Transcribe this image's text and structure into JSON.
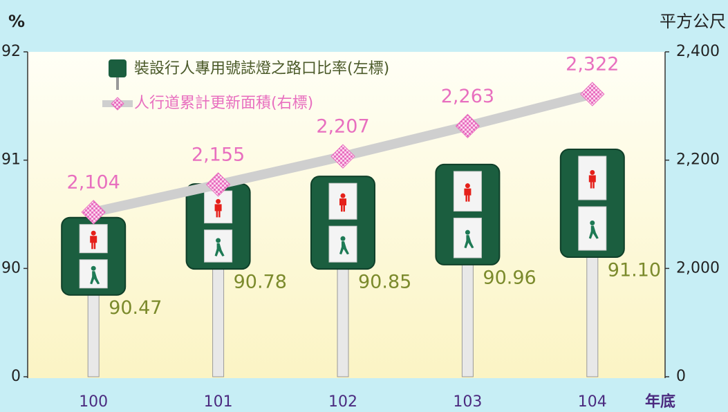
{
  "chart_data": {
    "type": "bar",
    "x_unit": "年底",
    "y_unit": "%",
    "y2_unit": "平方公尺",
    "categories": [
      "100",
      "101",
      "102",
      "103",
      "104"
    ],
    "series": [
      {
        "name": "裝設行人專用號誌燈之路口比率(左標)",
        "color": "#1b5e3f",
        "type": "bar",
        "values": [
          90.47,
          90.78,
          90.85,
          90.96,
          91.1
        ],
        "value_labels": [
          "90.47",
          "90.78",
          "90.85",
          "90.96",
          "91.10"
        ]
      },
      {
        "name": "人行道累計更新面積(右標)",
        "color": "#e86fbf",
        "type": "line",
        "axis": "y2",
        "values": [
          2104,
          2155,
          2207,
          2263,
          2322
        ],
        "value_labels": [
          "2,104",
          "2,155",
          "2,207",
          "2,263",
          "2,322"
        ]
      }
    ],
    "ylim": [
      0,
      92
    ],
    "yticks": [
      0,
      90,
      91,
      92
    ],
    "y2lim": [
      0,
      2400
    ],
    "y2ticks": [
      0,
      {
        "value": 2000,
        "label": "2,000"
      },
      {
        "value": 2200,
        "label": "2,200"
      },
      {
        "value": 2400,
        "label": "2,400"
      }
    ]
  }
}
